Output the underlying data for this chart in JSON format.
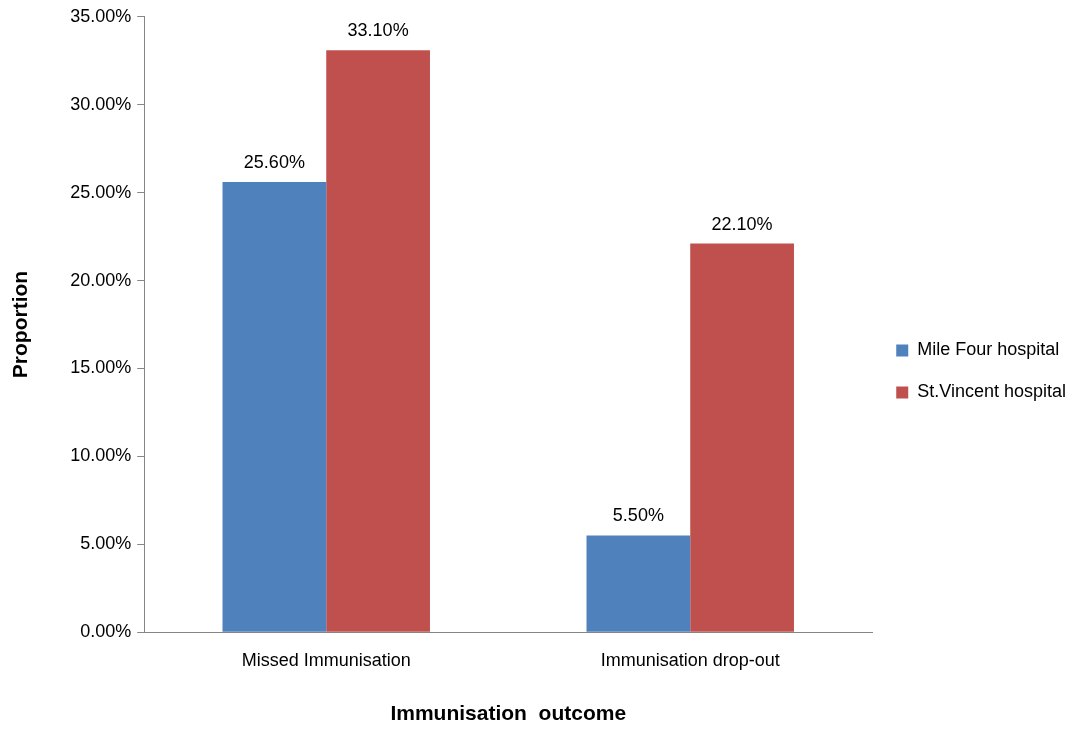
{
  "chart_data": {
    "type": "bar",
    "xlabel": "Immunisation  outcome",
    "ylabel": "Proportion",
    "categories": [
      "Missed Immunisation",
      "Immunisation drop-out"
    ],
    "series": [
      {
        "name": "Mile Four hospital",
        "color": "#4f81bd",
        "values": [
          25.6,
          5.5
        ],
        "value_labels": [
          "25.60%",
          "5.50%"
        ]
      },
      {
        "name": "St.Vincent hospital",
        "color": "#c0504d",
        "values": [
          33.1,
          22.1
        ],
        "value_labels": [
          "33.10%",
          "22.10%"
        ]
      }
    ],
    "ylim": [
      0,
      35
    ],
    "yticks": [
      {
        "value": 0,
        "label": "0.00%"
      },
      {
        "value": 5,
        "label": "5.00%"
      },
      {
        "value": 10,
        "label": "10.00%"
      },
      {
        "value": 15,
        "label": "15.00%"
      },
      {
        "value": 20,
        "label": "20.00%"
      },
      {
        "value": 25,
        "label": "25.00%"
      },
      {
        "value": 30,
        "label": "30.00%"
      },
      {
        "value": 35,
        "label": "35.00%"
      }
    ],
    "grid": false,
    "legend": "right"
  }
}
